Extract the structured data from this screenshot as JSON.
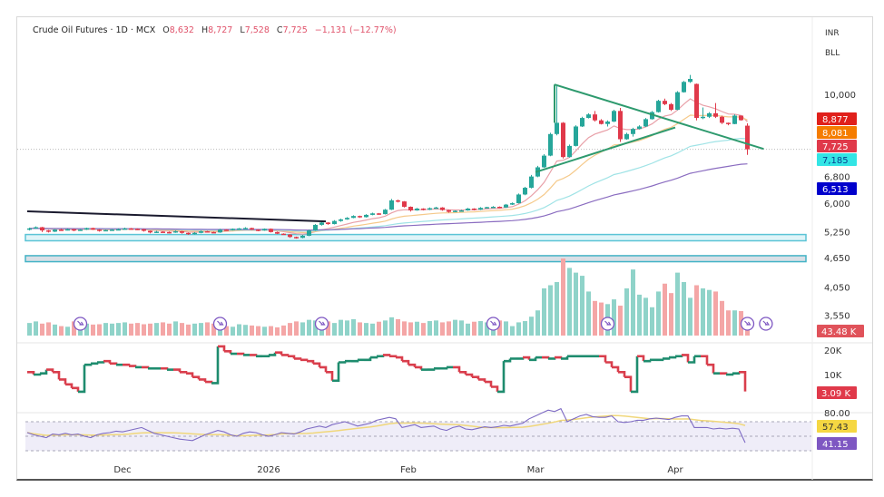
{
  "header": {
    "symbol": "Crude Oil Futures · 1D · MCX",
    "open_label": "O",
    "open": "8,632",
    "high_label": "H",
    "high": "8,727",
    "low_label": "L",
    "low": "7,528",
    "close_label": "C",
    "close": "7,725",
    "change": "−1,131 (−12.77%)"
  },
  "units": {
    "currency": "INR",
    "scale": "BLL"
  },
  "colors": {
    "up": "#26a69a",
    "down": "#e0394a",
    "trend": "#2e9a6e",
    "step_up": "#1e8c6e",
    "step_down": "#d93e4c",
    "rsi": "#7e6bc4",
    "rsi_ma": "#f0d77a"
  },
  "chart_data": {
    "type": "candlestick",
    "price_scale": "log",
    "price_ticks": [
      "10,000",
      "6,800",
      "6,000",
      "5,250",
      "4,650",
      "4,050",
      "3,550"
    ],
    "price_tick_values": [
      10000,
      6800,
      6000,
      5250,
      4650,
      4050,
      3550
    ],
    "time_ticks": [
      {
        "date": "2025-12-01",
        "label": "Dec"
      },
      {
        "date": "2026-01-01",
        "label": "2026"
      },
      {
        "date": "2026-02-02",
        "label": "Feb"
      },
      {
        "date": "2026-03-02",
        "label": "Mar"
      },
      {
        "date": "2026-04-01",
        "label": "Apr"
      }
    ],
    "candles_columns": [
      "date",
      "open",
      "high",
      "low",
      "close"
    ],
    "candles": [
      [
        "2025-11-10",
        5300,
        5350,
        5280,
        5330
      ],
      [
        "2025-11-11",
        5330,
        5380,
        5320,
        5360
      ],
      [
        "2025-11-12",
        5360,
        5370,
        5240,
        5280
      ],
      [
        "2025-11-13",
        5280,
        5290,
        5230,
        5250
      ],
      [
        "2025-11-14",
        5250,
        5310,
        5240,
        5300
      ],
      [
        "2025-11-17",
        5300,
        5320,
        5280,
        5290
      ],
      [
        "2025-11-18",
        5290,
        5330,
        5280,
        5310
      ],
      [
        "2025-11-19",
        5310,
        5320,
        5260,
        5280
      ],
      [
        "2025-11-20",
        5280,
        5310,
        5270,
        5300
      ],
      [
        "2025-11-21",
        5300,
        5350,
        5290,
        5340
      ],
      [
        "2025-11-24",
        5340,
        5350,
        5290,
        5300
      ],
      [
        "2025-11-25",
        5300,
        5310,
        5250,
        5270
      ],
      [
        "2025-11-26",
        5270,
        5300,
        5260,
        5290
      ],
      [
        "2025-11-27",
        5290,
        5310,
        5280,
        5300
      ],
      [
        "2025-11-28",
        5300,
        5330,
        5290,
        5310
      ],
      [
        "2025-12-01",
        5310,
        5350,
        5300,
        5330
      ],
      [
        "2025-12-02",
        5330,
        5340,
        5300,
        5320
      ],
      [
        "2025-12-03",
        5320,
        5330,
        5290,
        5310
      ],
      [
        "2025-12-04",
        5310,
        5320,
        5250,
        5270
      ],
      [
        "2025-12-05",
        5270,
        5280,
        5210,
        5230
      ],
      [
        "2025-12-08",
        5230,
        5270,
        5220,
        5250
      ],
      [
        "2025-12-09",
        5250,
        5260,
        5230,
        5240
      ],
      [
        "2025-12-10",
        5240,
        5250,
        5210,
        5230
      ],
      [
        "2025-12-11",
        5230,
        5280,
        5220,
        5260
      ],
      [
        "2025-12-12",
        5260,
        5270,
        5200,
        5220
      ],
      [
        "2025-12-15",
        5220,
        5230,
        5170,
        5190
      ],
      [
        "2025-12-16",
        5190,
        5240,
        5180,
        5220
      ],
      [
        "2025-12-17",
        5220,
        5280,
        5210,
        5260
      ],
      [
        "2025-12-18",
        5260,
        5270,
        5230,
        5240
      ],
      [
        "2025-12-19",
        5240,
        5250,
        5220,
        5230
      ],
      [
        "2025-12-22",
        5230,
        5320,
        5220,
        5300
      ],
      [
        "2025-12-23",
        5300,
        5310,
        5270,
        5290
      ],
      [
        "2025-12-24",
        5290,
        5330,
        5280,
        5320
      ],
      [
        "2025-12-25",
        5320,
        5340,
        5310,
        5330
      ],
      [
        "2025-12-26",
        5330,
        5360,
        5320,
        5340
      ],
      [
        "2025-12-29",
        5340,
        5350,
        5290,
        5300
      ],
      [
        "2025-12-30",
        5300,
        5310,
        5260,
        5280
      ],
      [
        "2025-12-31",
        5280,
        5330,
        5270,
        5320
      ],
      [
        "2026-01-01",
        5320,
        5330,
        5230,
        5240
      ],
      [
        "2026-01-02",
        5240,
        5250,
        5190,
        5200
      ],
      [
        "2026-01-05",
        5200,
        5210,
        5170,
        5180
      ],
      [
        "2026-01-06",
        5180,
        5190,
        5100,
        5120
      ],
      [
        "2026-01-07",
        5120,
        5130,
        5080,
        5100
      ],
      [
        "2026-01-08",
        5100,
        5170,
        5090,
        5150
      ],
      [
        "2026-01-09",
        5150,
        5300,
        5140,
        5280
      ],
      [
        "2026-01-12",
        5280,
        5440,
        5270,
        5420
      ],
      [
        "2026-01-13",
        5420,
        5500,
        5400,
        5480
      ],
      [
        "2026-01-14",
        5480,
        5490,
        5420,
        5440
      ],
      [
        "2026-01-15",
        5440,
        5540,
        5430,
        5520
      ],
      [
        "2026-01-16",
        5520,
        5580,
        5500,
        5560
      ],
      [
        "2026-01-19",
        5560,
        5620,
        5550,
        5600
      ],
      [
        "2026-01-20",
        5600,
        5670,
        5590,
        5650
      ],
      [
        "2026-01-21",
        5650,
        5660,
        5600,
        5620
      ],
      [
        "2026-01-22",
        5620,
        5700,
        5610,
        5680
      ],
      [
        "2026-01-23",
        5680,
        5740,
        5670,
        5720
      ],
      [
        "2026-01-26",
        5720,
        5730,
        5680,
        5700
      ],
      [
        "2026-01-27",
        5700,
        5840,
        5690,
        5820
      ],
      [
        "2026-01-28",
        5820,
        6120,
        5810,
        6080
      ],
      [
        "2026-01-29",
        6080,
        6100,
        6020,
        6050
      ],
      [
        "2026-01-30",
        6050,
        6060,
        5880,
        5900
      ],
      [
        "2026-02-02",
        5900,
        5910,
        5770,
        5800
      ],
      [
        "2026-02-03",
        5800,
        5870,
        5790,
        5850
      ],
      [
        "2026-02-04",
        5850,
        5860,
        5800,
        5820
      ],
      [
        "2026-02-05",
        5820,
        5880,
        5810,
        5860
      ],
      [
        "2026-02-06",
        5860,
        5900,
        5850,
        5880
      ],
      [
        "2026-02-09",
        5880,
        5890,
        5790,
        5810
      ],
      [
        "2026-02-10",
        5810,
        5820,
        5740,
        5760
      ],
      [
        "2026-02-11",
        5760,
        5800,
        5750,
        5790
      ],
      [
        "2026-02-12",
        5790,
        5820,
        5780,
        5800
      ],
      [
        "2026-02-13",
        5800,
        5870,
        5790,
        5850
      ],
      [
        "2026-02-16",
        5850,
        5860,
        5800,
        5820
      ],
      [
        "2026-02-17",
        5820,
        5890,
        5810,
        5870
      ],
      [
        "2026-02-18",
        5870,
        5900,
        5860,
        5890
      ],
      [
        "2026-02-19",
        5890,
        5920,
        5880,
        5900
      ],
      [
        "2026-02-20",
        5900,
        5910,
        5860,
        5880
      ],
      [
        "2026-02-23",
        5880,
        5980,
        5870,
        5960
      ],
      [
        "2026-02-24",
        5960,
        6020,
        5950,
        6000
      ],
      [
        "2026-02-25",
        6000,
        6280,
        5990,
        6250
      ],
      [
        "2026-02-26",
        6250,
        6480,
        6230,
        6450
      ],
      [
        "2026-02-27",
        6450,
        6850,
        6430,
        6800
      ],
      [
        "2026-03-02",
        6800,
        7150,
        6780,
        7100
      ],
      [
        "2026-03-03",
        7100,
        7550,
        7080,
        7500
      ],
      [
        "2026-03-04",
        7500,
        8350,
        7480,
        8300
      ],
      [
        "2026-03-05",
        8300,
        10450,
        8250,
        8750
      ],
      [
        "2026-03-06",
        8750,
        8780,
        7400,
        7450
      ],
      [
        "2026-03-09",
        7450,
        7900,
        7430,
        7850
      ],
      [
        "2026-03-10",
        7850,
        8650,
        7830,
        8600
      ],
      [
        "2026-03-11",
        8600,
        9000,
        8580,
        8950
      ],
      [
        "2026-03-12",
        8950,
        9150,
        8930,
        9100
      ],
      [
        "2026-03-13",
        9100,
        9250,
        8800,
        8850
      ],
      [
        "2026-03-16",
        8850,
        8900,
        8680,
        8700
      ],
      [
        "2026-03-17",
        8700,
        8850,
        8600,
        8800
      ],
      [
        "2026-03-18",
        8800,
        9300,
        8780,
        9250
      ],
      [
        "2026-03-19",
        9250,
        9380,
        8000,
        8100
      ],
      [
        "2026-03-20",
        8100,
        8350,
        8080,
        8300
      ],
      [
        "2026-03-23",
        8300,
        8550,
        8200,
        8500
      ],
      [
        "2026-03-24",
        8500,
        8650,
        8480,
        8600
      ],
      [
        "2026-03-25",
        8600,
        8950,
        8580,
        8900
      ],
      [
        "2026-03-26",
        8900,
        9250,
        8880,
        9200
      ],
      [
        "2026-03-27",
        9200,
        9750,
        9180,
        9700
      ],
      [
        "2026-03-30",
        9700,
        9800,
        9500,
        9550
      ],
      [
        "2026-03-31",
        9550,
        9600,
        9250,
        9300
      ],
      [
        "2026-04-01",
        9300,
        10150,
        9280,
        10100
      ],
      [
        "2026-04-02",
        10100,
        10650,
        10080,
        10600
      ],
      [
        "2026-04-03",
        10600,
        10950,
        10550,
        10750
      ],
      [
        "2026-04-06",
        10500,
        10520,
        8850,
        8950
      ],
      [
        "2026-04-07",
        8950,
        9400,
        8900,
        9000
      ],
      [
        "2026-04-08",
        9000,
        9200,
        8950,
        9150
      ],
      [
        "2026-04-09",
        9150,
        9600,
        8950,
        9000
      ],
      [
        "2026-04-10",
        9000,
        9050,
        8700,
        8750
      ],
      [
        "2026-04-13",
        8750,
        8760,
        8650,
        8700
      ],
      [
        "2026-04-14",
        8700,
        9100,
        8690,
        9050
      ],
      [
        "2026-04-15",
        9050,
        9060,
        8840,
        8856
      ],
      [
        "2026-04-16",
        8632,
        8727,
        7528,
        7725
      ]
    ],
    "moving_average_labels": [
      {
        "value": "8,877",
        "color": "#e0201b",
        "text_color": "#ffffff"
      },
      {
        "value": "8,081",
        "color": "#f57c00",
        "text_color": "#ffffff"
      },
      {
        "value": "7,725",
        "color": "#e0394a",
        "text_color": "#ffffff"
      },
      {
        "value": "7,185",
        "color": "#33e5e5",
        "text_color": "#0a3d8f"
      },
      {
        "value": "6,513",
        "color": "#0000cc",
        "text_color": "#ffffff"
      }
    ],
    "moving_average_lines": [
      {
        "period": 9,
        "color": "#e8a0a8"
      },
      {
        "period": 20,
        "color": "#f5c98a"
      },
      {
        "period": 50,
        "color": "#9fe3e6"
      },
      {
        "period": 100,
        "color": "#8a6cc0"
      }
    ],
    "trendlines": [
      {
        "name": "black-trendline",
        "color": "#1a1a2e",
        "from": [
          "2025-11-10",
          5775
        ],
        "to": [
          "2026-01-14",
          5510
        ]
      },
      {
        "name": "upper-triangle-line",
        "color": "#2e9a6e",
        "from": [
          "2026-03-05",
          10470
        ],
        "to": [
          "2026-04-20",
          7740
        ]
      },
      {
        "name": "triangle-vertical-line",
        "color": "#2e9a6e",
        "from": [
          "2026-03-05",
          10470
        ],
        "to": [
          "2026-03-05",
          8750
        ]
      },
      {
        "name": "lower-triangle-line",
        "color": "#2e9a6e",
        "from": [
          "2026-03-02",
          6940
        ],
        "to": [
          "2026-04-01",
          8560
        ]
      }
    ],
    "zones": [
      {
        "name": "support-zone-upper",
        "top": 5180,
        "bottom": 5030,
        "fill": "#dff4f8",
        "stroke": "#5bc4d6"
      },
      {
        "name": "support-zone-lower",
        "top": 4690,
        "bottom": 4560,
        "fill": "#d9dfe6",
        "stroke": "#43b3c6"
      }
    ],
    "volume": {
      "unit": "K",
      "last_label": "43.48 K",
      "last_color": "#e0525a",
      "values": [
        40,
        45,
        38,
        42,
        35,
        30,
        28,
        45,
        40,
        38,
        35,
        36,
        40,
        38,
        40,
        42,
        38,
        40,
        36,
        38,
        40,
        42,
        38,
        45,
        40,
        35,
        38,
        40,
        42,
        38,
        35,
        30,
        28,
        36,
        34,
        32,
        30,
        28,
        30,
        26,
        32,
        40,
        45,
        42,
        50,
        48,
        55,
        45,
        40,
        50,
        48,
        52,
        42,
        40,
        38,
        44,
        48,
        58,
        52,
        45,
        42,
        44,
        40,
        46,
        48,
        42,
        45,
        50,
        48,
        38,
        44,
        46,
        42,
        40,
        48,
        45,
        30,
        42,
        46,
        60,
        80,
        150,
        160,
        170,
        245,
        215,
        200,
        190,
        140,
        110,
        105,
        100,
        115,
        95,
        150,
        210,
        130,
        120,
        90,
        140,
        165,
        135,
        200,
        170,
        120,
        160,
        150,
        145,
        140,
        110,
        80,
        80,
        78,
        43.48
      ],
      "rollover_markers": [
        "2025-11-20",
        "2025-12-22",
        "2026-01-13",
        "2026-02-19",
        "2026-03-17",
        "2026-04-16",
        "2026-04-20"
      ]
    },
    "step_indicator": {
      "unit": "K",
      "ticks": [
        "20K",
        "10K"
      ],
      "tick_values": [
        20,
        10
      ],
      "last_label": "3.09 K",
      "values": [
        11,
        10,
        10.5,
        12,
        11,
        8,
        6,
        4.5,
        3,
        14,
        14.5,
        15,
        15.5,
        14.5,
        14,
        14,
        13.5,
        13,
        13,
        12.5,
        12.5,
        12.5,
        12,
        12,
        11,
        10.5,
        9,
        8,
        7,
        6.5,
        21.5,
        19.5,
        18.5,
        18.5,
        18,
        18,
        17.5,
        17.5,
        18,
        19,
        18,
        17.5,
        16.5,
        16,
        15.5,
        14.5,
        13,
        11,
        7.5,
        15,
        15.5,
        15.5,
        16,
        16,
        17,
        17.5,
        18,
        17.5,
        17,
        15.5,
        14,
        13,
        12,
        12,
        12.5,
        12.5,
        13,
        13,
        11,
        10,
        9,
        8,
        7,
        5,
        3,
        15.5,
        16.5,
        16.5,
        17,
        16,
        17,
        17,
        16.5,
        17,
        16.5,
        17.5,
        17.5,
        17.5,
        17.5,
        17.5,
        17.5,
        15,
        13,
        11,
        9,
        3,
        17.5,
        15.5,
        16,
        16,
        16.5,
        17,
        17.5,
        18,
        15,
        17.5,
        17.5,
        14,
        10.5,
        10.5,
        10,
        10.5,
        11,
        3.09
      ]
    },
    "rsi": {
      "tick": "80.00",
      "levels": [
        70,
        50,
        30
      ],
      "ma_label": "57.43",
      "ma_color": "#f5d742",
      "last_label": "41.15",
      "last_color": "#7e57c2",
      "values": [
        55,
        52,
        50,
        48,
        53,
        52,
        54,
        52,
        53,
        50,
        48,
        52,
        54,
        55,
        57,
        56,
        58,
        60,
        62,
        58,
        54,
        52,
        50,
        48,
        46,
        45,
        44,
        48,
        52,
        55,
        58,
        56,
        52,
        50,
        54,
        56,
        55,
        52,
        50,
        52,
        55,
        54,
        53,
        56,
        60,
        62,
        64,
        62,
        66,
        68,
        70,
        67,
        64,
        66,
        68,
        72,
        74,
        76,
        74,
        62,
        64,
        66,
        62,
        63,
        64,
        60,
        58,
        62,
        64,
        60,
        59,
        61,
        63,
        62,
        63,
        65,
        64,
        66,
        68,
        74,
        78,
        82,
        86,
        84,
        88,
        70,
        74,
        78,
        80,
        77,
        76,
        76,
        78,
        70,
        69,
        70,
        72,
        72,
        74,
        75,
        74,
        73,
        76,
        78,
        78,
        62,
        62,
        62,
        60,
        61,
        60,
        61,
        60,
        41.15
      ]
    }
  }
}
